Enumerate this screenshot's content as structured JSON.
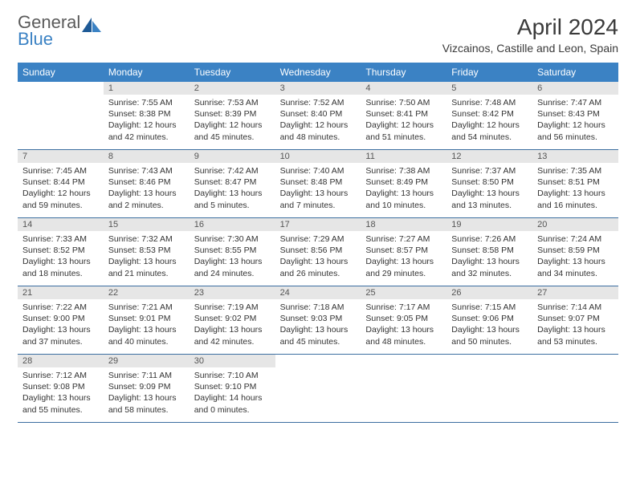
{
  "logo": {
    "text_top": "General",
    "text_bottom": "Blue"
  },
  "header": {
    "month_title": "April 2024",
    "location": "Vizcainos, Castille and Leon, Spain"
  },
  "weekdays": [
    "Sunday",
    "Monday",
    "Tuesday",
    "Wednesday",
    "Thursday",
    "Friday",
    "Saturday"
  ],
  "weeks": [
    [
      {
        "empty": true
      },
      {
        "day": "1",
        "sunrise": "Sunrise: 7:55 AM",
        "sunset": "Sunset: 8:38 PM",
        "daylight": "Daylight: 12 hours and 42 minutes."
      },
      {
        "day": "2",
        "sunrise": "Sunrise: 7:53 AM",
        "sunset": "Sunset: 8:39 PM",
        "daylight": "Daylight: 12 hours and 45 minutes."
      },
      {
        "day": "3",
        "sunrise": "Sunrise: 7:52 AM",
        "sunset": "Sunset: 8:40 PM",
        "daylight": "Daylight: 12 hours and 48 minutes."
      },
      {
        "day": "4",
        "sunrise": "Sunrise: 7:50 AM",
        "sunset": "Sunset: 8:41 PM",
        "daylight": "Daylight: 12 hours and 51 minutes."
      },
      {
        "day": "5",
        "sunrise": "Sunrise: 7:48 AM",
        "sunset": "Sunset: 8:42 PM",
        "daylight": "Daylight: 12 hours and 54 minutes."
      },
      {
        "day": "6",
        "sunrise": "Sunrise: 7:47 AM",
        "sunset": "Sunset: 8:43 PM",
        "daylight": "Daylight: 12 hours and 56 minutes."
      }
    ],
    [
      {
        "day": "7",
        "sunrise": "Sunrise: 7:45 AM",
        "sunset": "Sunset: 8:44 PM",
        "daylight": "Daylight: 12 hours and 59 minutes."
      },
      {
        "day": "8",
        "sunrise": "Sunrise: 7:43 AM",
        "sunset": "Sunset: 8:46 PM",
        "daylight": "Daylight: 13 hours and 2 minutes."
      },
      {
        "day": "9",
        "sunrise": "Sunrise: 7:42 AM",
        "sunset": "Sunset: 8:47 PM",
        "daylight": "Daylight: 13 hours and 5 minutes."
      },
      {
        "day": "10",
        "sunrise": "Sunrise: 7:40 AM",
        "sunset": "Sunset: 8:48 PM",
        "daylight": "Daylight: 13 hours and 7 minutes."
      },
      {
        "day": "11",
        "sunrise": "Sunrise: 7:38 AM",
        "sunset": "Sunset: 8:49 PM",
        "daylight": "Daylight: 13 hours and 10 minutes."
      },
      {
        "day": "12",
        "sunrise": "Sunrise: 7:37 AM",
        "sunset": "Sunset: 8:50 PM",
        "daylight": "Daylight: 13 hours and 13 minutes."
      },
      {
        "day": "13",
        "sunrise": "Sunrise: 7:35 AM",
        "sunset": "Sunset: 8:51 PM",
        "daylight": "Daylight: 13 hours and 16 minutes."
      }
    ],
    [
      {
        "day": "14",
        "sunrise": "Sunrise: 7:33 AM",
        "sunset": "Sunset: 8:52 PM",
        "daylight": "Daylight: 13 hours and 18 minutes."
      },
      {
        "day": "15",
        "sunrise": "Sunrise: 7:32 AM",
        "sunset": "Sunset: 8:53 PM",
        "daylight": "Daylight: 13 hours and 21 minutes."
      },
      {
        "day": "16",
        "sunrise": "Sunrise: 7:30 AM",
        "sunset": "Sunset: 8:55 PM",
        "daylight": "Daylight: 13 hours and 24 minutes."
      },
      {
        "day": "17",
        "sunrise": "Sunrise: 7:29 AM",
        "sunset": "Sunset: 8:56 PM",
        "daylight": "Daylight: 13 hours and 26 minutes."
      },
      {
        "day": "18",
        "sunrise": "Sunrise: 7:27 AM",
        "sunset": "Sunset: 8:57 PM",
        "daylight": "Daylight: 13 hours and 29 minutes."
      },
      {
        "day": "19",
        "sunrise": "Sunrise: 7:26 AM",
        "sunset": "Sunset: 8:58 PM",
        "daylight": "Daylight: 13 hours and 32 minutes."
      },
      {
        "day": "20",
        "sunrise": "Sunrise: 7:24 AM",
        "sunset": "Sunset: 8:59 PM",
        "daylight": "Daylight: 13 hours and 34 minutes."
      }
    ],
    [
      {
        "day": "21",
        "sunrise": "Sunrise: 7:22 AM",
        "sunset": "Sunset: 9:00 PM",
        "daylight": "Daylight: 13 hours and 37 minutes."
      },
      {
        "day": "22",
        "sunrise": "Sunrise: 7:21 AM",
        "sunset": "Sunset: 9:01 PM",
        "daylight": "Daylight: 13 hours and 40 minutes."
      },
      {
        "day": "23",
        "sunrise": "Sunrise: 7:19 AM",
        "sunset": "Sunset: 9:02 PM",
        "daylight": "Daylight: 13 hours and 42 minutes."
      },
      {
        "day": "24",
        "sunrise": "Sunrise: 7:18 AM",
        "sunset": "Sunset: 9:03 PM",
        "daylight": "Daylight: 13 hours and 45 minutes."
      },
      {
        "day": "25",
        "sunrise": "Sunrise: 7:17 AM",
        "sunset": "Sunset: 9:05 PM",
        "daylight": "Daylight: 13 hours and 48 minutes."
      },
      {
        "day": "26",
        "sunrise": "Sunrise: 7:15 AM",
        "sunset": "Sunset: 9:06 PM",
        "daylight": "Daylight: 13 hours and 50 minutes."
      },
      {
        "day": "27",
        "sunrise": "Sunrise: 7:14 AM",
        "sunset": "Sunset: 9:07 PM",
        "daylight": "Daylight: 13 hours and 53 minutes."
      }
    ],
    [
      {
        "day": "28",
        "sunrise": "Sunrise: 7:12 AM",
        "sunset": "Sunset: 9:08 PM",
        "daylight": "Daylight: 13 hours and 55 minutes."
      },
      {
        "day": "29",
        "sunrise": "Sunrise: 7:11 AM",
        "sunset": "Sunset: 9:09 PM",
        "daylight": "Daylight: 13 hours and 58 minutes."
      },
      {
        "day": "30",
        "sunrise": "Sunrise: 7:10 AM",
        "sunset": "Sunset: 9:10 PM",
        "daylight": "Daylight: 14 hours and 0 minutes."
      },
      {
        "empty": true
      },
      {
        "empty": true
      },
      {
        "empty": true
      },
      {
        "empty": true
      }
    ]
  ],
  "style": {
    "header_bg": "#3b82c4",
    "daynum_bg": "#e6e6e6",
    "border_color": "#3b6ea0",
    "text_color": "#333333"
  }
}
